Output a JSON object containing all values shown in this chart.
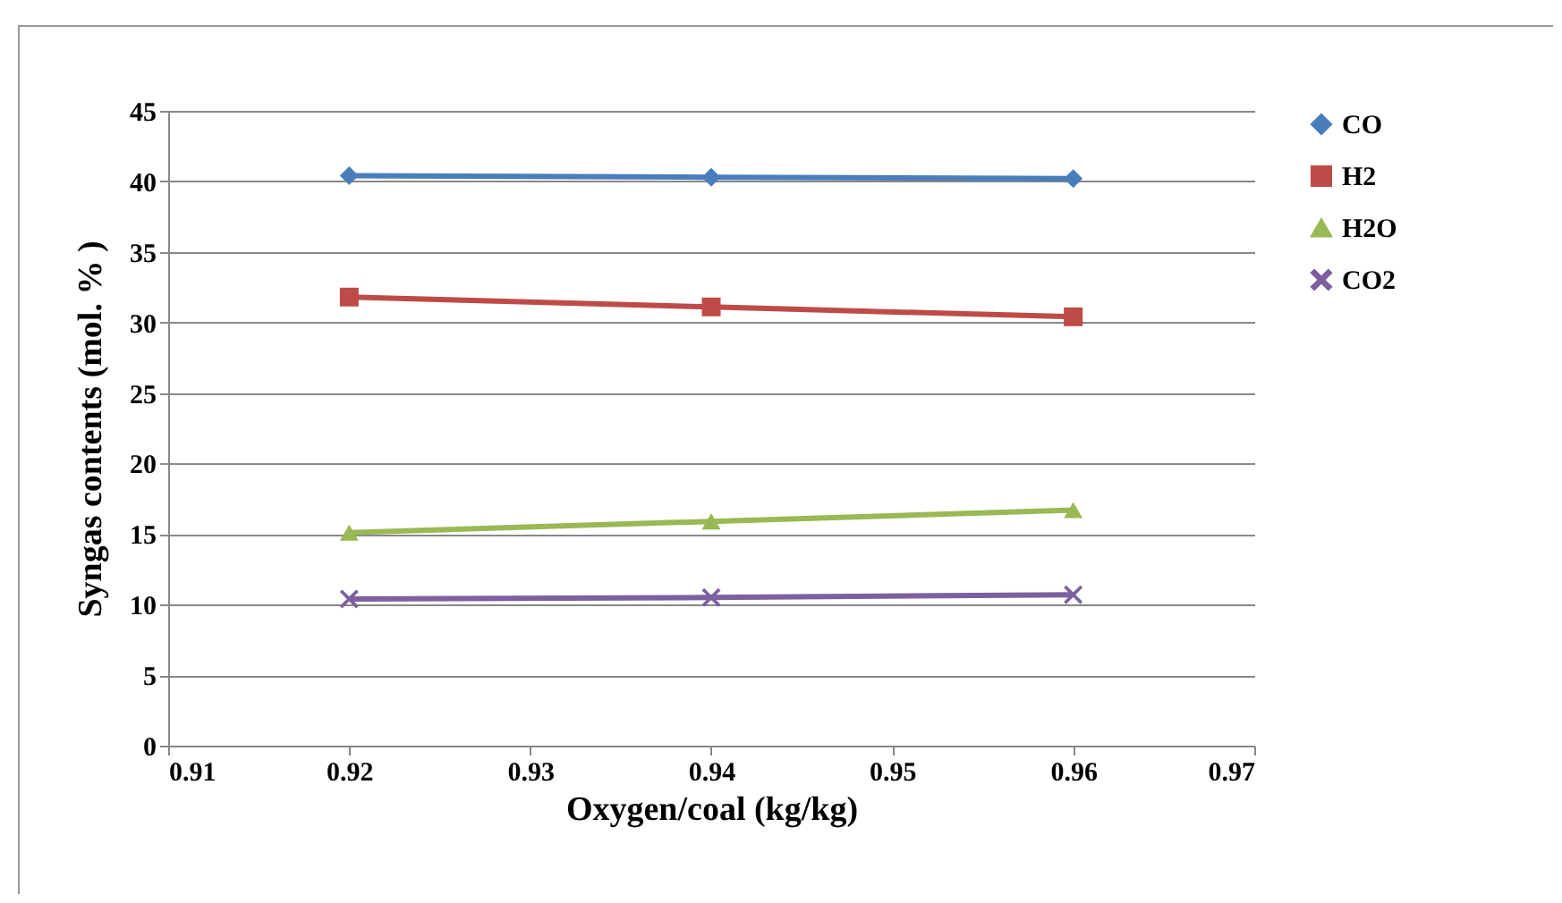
{
  "chart_data": {
    "type": "line",
    "xlabel": "Oxygen/coal (kg/kg)",
    "ylabel": "Syngas contents (mol. % )",
    "x": [
      0.92,
      0.94,
      0.96
    ],
    "series": [
      {
        "name": "CO",
        "color": "#4a7ebb",
        "marker": "diamond",
        "values": [
          40.4,
          40.3,
          40.2
        ]
      },
      {
        "name": "H2",
        "color": "#be4b48",
        "marker": "square",
        "values": [
          31.8,
          31.1,
          30.4
        ]
      },
      {
        "name": "H2O",
        "color": "#98b954",
        "marker": "triangle",
        "values": [
          15.1,
          15.9,
          16.7
        ]
      },
      {
        "name": "CO2",
        "color": "#7d60a0",
        "marker": "cross",
        "values": [
          10.4,
          10.5,
          10.7
        ]
      }
    ],
    "xlim": [
      0.91,
      0.97
    ],
    "xticks": [
      0.91,
      0.92,
      0.93,
      0.94,
      0.95,
      0.96,
      0.97
    ],
    "ylim": [
      0,
      45
    ],
    "yticks": [
      0,
      5,
      10,
      15,
      20,
      25,
      30,
      35,
      40,
      45
    ],
    "grid": "y",
    "legend": "right",
    "line_style": "solid"
  }
}
